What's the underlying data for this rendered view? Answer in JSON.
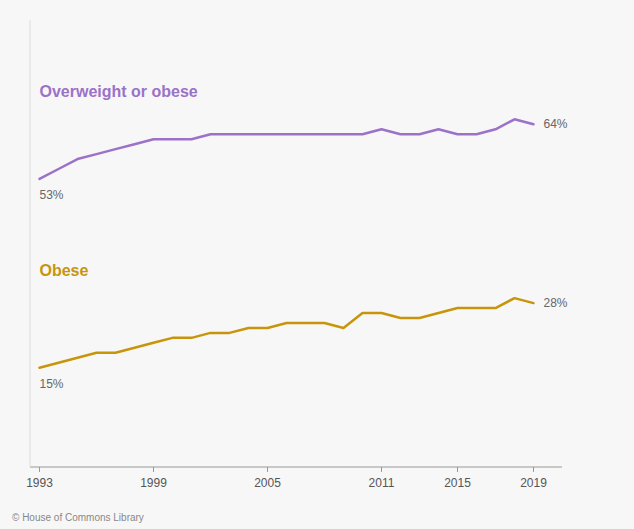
{
  "chart_data": {
    "type": "line",
    "x": [
      1993,
      1994,
      1995,
      1996,
      1997,
      1998,
      1999,
      2000,
      2001,
      2002,
      2003,
      2004,
      2005,
      2006,
      2007,
      2008,
      2009,
      2010,
      2011,
      2012,
      2013,
      2014,
      2015,
      2016,
      2017,
      2018,
      2019
    ],
    "series": [
      {
        "name": "Overweight or obese",
        "color": "#9b72c8",
        "values": [
          53,
          55,
          57,
          58,
          59,
          60,
          61,
          61,
          61,
          62,
          62,
          62,
          62,
          62,
          62,
          62,
          62,
          62,
          63,
          62,
          62,
          63,
          62,
          62,
          63,
          65,
          64
        ],
        "value_labels": [
          "53%",
          null,
          null,
          null,
          null,
          null,
          null,
          null,
          null,
          null,
          null,
          null,
          null,
          null,
          null,
          null,
          null,
          null,
          null,
          null,
          null,
          null,
          null,
          null,
          null,
          null,
          "64%"
        ]
      },
      {
        "name": "Obese",
        "color": "#c8950a",
        "values": [
          15,
          16,
          17,
          18,
          18,
          19,
          20,
          21,
          21,
          22,
          22,
          23,
          23,
          24,
          24,
          24,
          23,
          26,
          26,
          25,
          25,
          26,
          27,
          27,
          27,
          29,
          28
        ],
        "value_labels": [
          "15%",
          null,
          null,
          null,
          null,
          null,
          null,
          null,
          null,
          null,
          null,
          null,
          null,
          null,
          null,
          null,
          null,
          null,
          null,
          null,
          null,
          null,
          null,
          null,
          null,
          null,
          "28%"
        ]
      }
    ],
    "xlim": [
      1992.5,
      2020.5
    ],
    "xticks": [
      1993,
      1999,
      2005,
      2011,
      2015,
      2019
    ],
    "ylim": [
      -5,
      85
    ],
    "tick_labels": "x",
    "annotations": [
      "© House of Commons Library"
    ]
  }
}
